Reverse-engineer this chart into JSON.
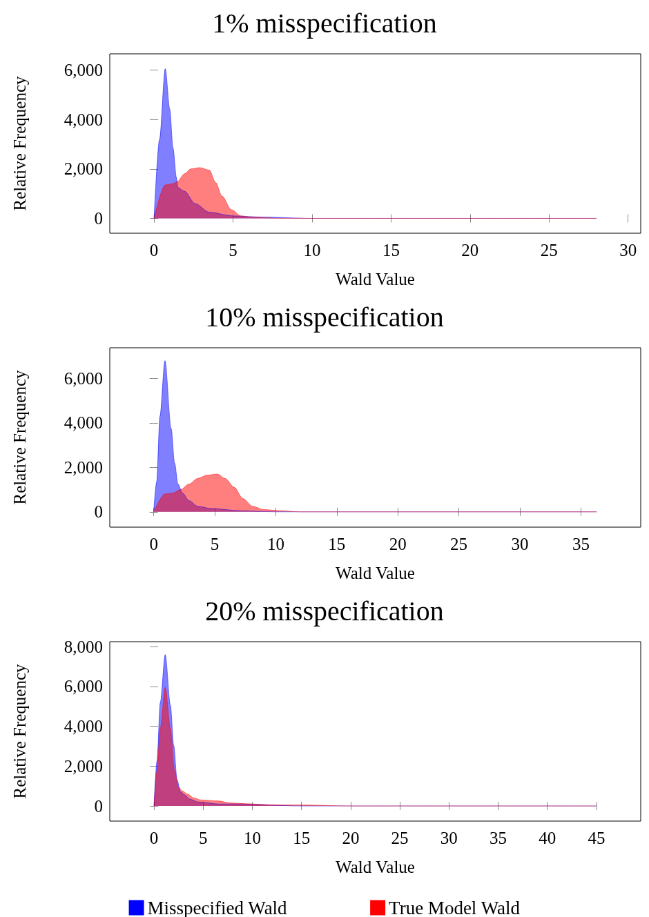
{
  "chart_data": [
    {
      "type": "area",
      "title": "1% misspecification",
      "xlabel": "Wald Value",
      "ylabel": "Relative Frequency",
      "xlim": [
        -2.8,
        30.8
      ],
      "ylim": [
        -600,
        6650
      ],
      "xticks": [
        0,
        5,
        10,
        15,
        20,
        25,
        30
      ],
      "yticks": [
        {
          "value": 0,
          "label": "0"
        },
        {
          "value": 2000,
          "label": "2,000"
        },
        {
          "value": 4000,
          "label": "4,000"
        },
        {
          "value": 6000,
          "label": "6,000"
        }
      ],
      "grid": false,
      "legend": false,
      "series": [
        {
          "color": "#0000ff",
          "x": [
            0,
            0.35,
            0.71,
            1.0,
            1.2,
            1.42,
            1.5,
            1.92,
            2.6,
            3.5,
            5,
            7,
            10,
            28
          ],
          "values": [
            0,
            3200,
            6050,
            4400,
            2850,
            1650,
            1250,
            1100,
            600,
            250,
            100,
            50,
            0,
            0
          ]
        },
        {
          "color": "#ff0000",
          "x": [
            0,
            0.71,
            1.2,
            1.5,
            1.92,
            2.34,
            2.9,
            3.5,
            3.9,
            4.3,
            4.9,
            5.5,
            6.2,
            8,
            10,
            28
          ],
          "values": [
            0,
            1350,
            1400,
            1500,
            1800,
            2000,
            2050,
            1950,
            1450,
            900,
            350,
            100,
            50,
            0,
            0,
            0
          ]
        }
      ]
    },
    {
      "type": "area",
      "title": "10% misspecification",
      "xlabel": "Wald Value",
      "ylabel": "Relative Frequency",
      "xlim": [
        -3.6,
        39.9
      ],
      "ylim": [
        -690,
        7380
      ],
      "xticks": [
        0,
        5,
        10,
        15,
        20,
        25,
        30,
        35
      ],
      "yticks": [
        {
          "value": 0,
          "label": "0"
        },
        {
          "value": 2000,
          "label": "2,000"
        },
        {
          "value": 4000,
          "label": "4,000"
        },
        {
          "value": 6000,
          "label": "6,000"
        }
      ],
      "grid": false,
      "legend": false,
      "series": [
        {
          "color": "#0000ff",
          "x": [
            0,
            0.24,
            0.51,
            0.92,
            1.43,
            1.71,
            1.99,
            2.35,
            2.9,
            3.6,
            4.7,
            7.1,
            10,
            36.3
          ],
          "values": [
            0,
            1350,
            4300,
            6800,
            3750,
            2200,
            1250,
            850,
            500,
            250,
            150,
            50,
            0,
            0
          ]
        },
        {
          "color": "#ff0000",
          "x": [
            0,
            0.92,
            1.6,
            2.2,
            2.9,
            3.6,
            4.4,
            5.2,
            5.85,
            6.6,
            7.3,
            8.1,
            9.0,
            10.4,
            12,
            36.3
          ],
          "values": [
            0,
            800,
            850,
            1000,
            1250,
            1500,
            1650,
            1700,
            1500,
            1100,
            600,
            250,
            100,
            50,
            0,
            0
          ]
        }
      ]
    },
    {
      "type": "area",
      "title": "20% misspecification",
      "xlabel": "Wald Value",
      "ylabel": "Relative Frequency",
      "xlim": [
        -4.5,
        49.5
      ],
      "ylim": [
        -760,
        8250
      ],
      "xticks": [
        0,
        5,
        10,
        15,
        20,
        25,
        30,
        35,
        40,
        45
      ],
      "yticks": [
        {
          "value": 0,
          "label": "0"
        },
        {
          "value": 2000,
          "label": "2,000"
        },
        {
          "value": 4000,
          "label": "4,000"
        },
        {
          "value": 6000,
          "label": "6,000"
        },
        {
          "value": 8000,
          "label": "8,000"
        }
      ],
      "grid": false,
      "legend": "bottom",
      "series": [
        {
          "name": "Misspecified Wald",
          "color": "#0000ff",
          "x": [
            0,
            0.3,
            0.64,
            1.14,
            1.67,
            2.0,
            2.35,
            2.7,
            3.15,
            3.6,
            4.5,
            6.6,
            8.9,
            15,
            25,
            45
          ],
          "values": [
            0,
            2250,
            5200,
            7600,
            5050,
            3050,
            1300,
            700,
            550,
            350,
            200,
            100,
            100,
            0,
            0,
            0
          ]
        },
        {
          "name": "True Model Wald",
          "color": "#ff0000",
          "x": [
            0,
            0.3,
            0.64,
            1.14,
            1.67,
            2.1,
            2.47,
            2.9,
            3.4,
            4.06,
            4.75,
            6.6,
            7.7,
            10,
            12,
            15,
            20,
            45
          ],
          "values": [
            0,
            1750,
            3900,
            5950,
            3900,
            1750,
            950,
            750,
            600,
            400,
            300,
            250,
            150,
            100,
            50,
            50,
            0,
            0
          ]
        }
      ]
    }
  ]
}
